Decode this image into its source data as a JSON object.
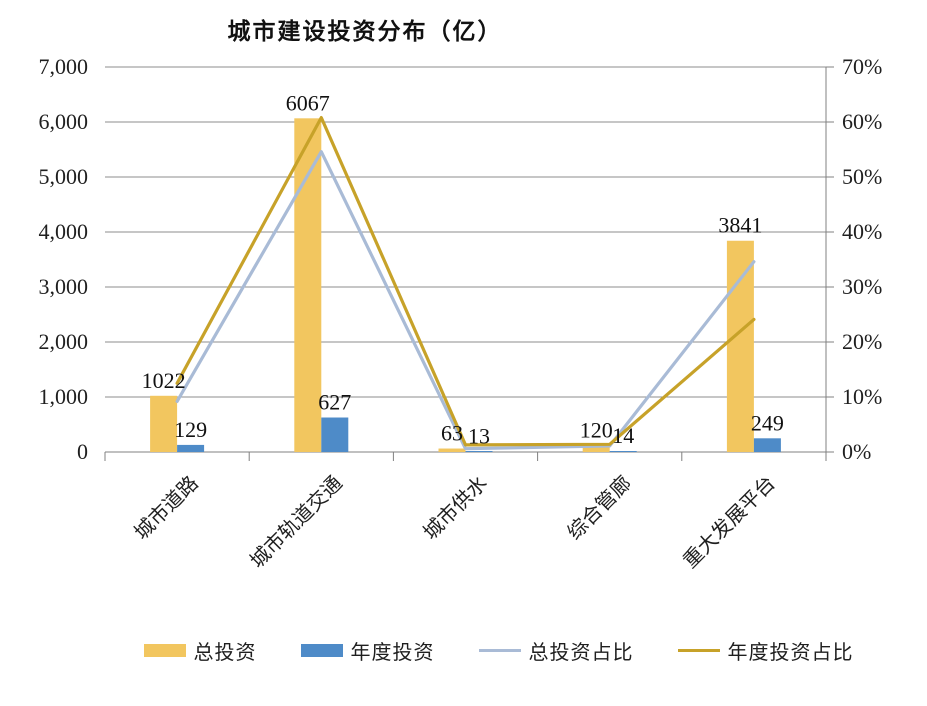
{
  "title": "城市建设投资分布（亿）",
  "chart_data": {
    "type": "bar+line combo",
    "categories": [
      "城市道路",
      "城市轨道交通",
      "城市供水",
      "综合管廊",
      "重大发展平台"
    ],
    "bar_series": [
      {
        "name": "总投资",
        "color": "#F2C65F",
        "axis": "left",
        "values": [
          1022,
          6067,
          63,
          120,
          3841
        ]
      },
      {
        "name": "年度投资",
        "color": "#4E8BC8",
        "axis": "left",
        "values": [
          129,
          627,
          13,
          14,
          249
        ]
      }
    ],
    "line_series": [
      {
        "name": "总投资占比",
        "color": "#A9BBD6",
        "axis": "right",
        "values_pct": [
          9.2,
          54.6,
          0.6,
          1.1,
          34.6
        ]
      },
      {
        "name": "年度投资占比",
        "color": "#C7A229",
        "axis": "right",
        "values_pct": [
          12.5,
          60.8,
          1.3,
          1.4,
          24.1
        ]
      }
    ],
    "left_axis": {
      "min": 0,
      "max": 7000,
      "step": 1000,
      "tick_labels": [
        "7,000",
        "6,000",
        "5,000",
        "4,000",
        "3,000",
        "2,000",
        "1,000",
        "0"
      ]
    },
    "right_axis": {
      "min": 0,
      "max": 70,
      "step": 10,
      "tick_labels": [
        "70%",
        "60%",
        "50%",
        "40%",
        "30%",
        "20%",
        "10%",
        "0%"
      ]
    },
    "bar_data_labels": [
      [
        "1022",
        "6067",
        "63",
        "120",
        "3841"
      ],
      [
        "129",
        "627",
        "13",
        "14",
        "249"
      ]
    ],
    "grid": true,
    "legend_position": "bottom"
  },
  "colors": {
    "grid_line": "#8c8c8c",
    "axis_line": "#808080",
    "text": "#1f1f1f",
    "background": "#ffffff"
  }
}
